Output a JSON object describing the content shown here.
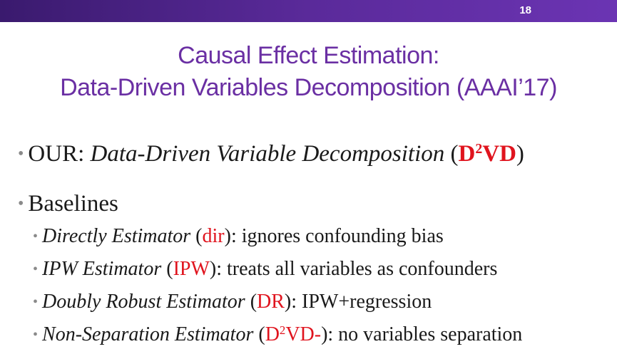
{
  "slide": {
    "number": "18",
    "title_line1": "Causal Effect Estimation:",
    "title_line2": "Data-Driven Variables Decomposition (AAAI’17)"
  },
  "bullets": {
    "ours": {
      "prefix": "OUR: ",
      "name": "Data-Driven Variable Decomposition",
      "open_paren": " (",
      "abbr_a": "D",
      "abbr_sup": "2",
      "abbr_b": "VD",
      "close_paren": ")"
    },
    "baselines": {
      "label": "Baselines",
      "items": [
        {
          "name": "Directly Estimator",
          "open": " (",
          "abbr": "dir",
          "close": ")",
          "desc": ": ignores confounding bias"
        },
        {
          "name": "IPW Estimator",
          "open": " (",
          "abbr": "IPW",
          "close": ")",
          "desc": ": treats all variables as confounders"
        },
        {
          "name": "Doubly Robust Estimator",
          "open": " (",
          "abbr": "DR",
          "close": ")",
          "desc": ": IPW+regression"
        },
        {
          "name": "Non-Separation Estimator",
          "open": " (",
          "abbr_a": "D",
          "abbr_sup": "2",
          "abbr_b": "VD-",
          "close": ")",
          "desc": ": no variables separation"
        }
      ]
    }
  },
  "colors": {
    "title": "#6a2fa3",
    "accent_red": "#e0141e",
    "bar_start": "#3a1a6e",
    "bar_end": "#6b34b3"
  }
}
